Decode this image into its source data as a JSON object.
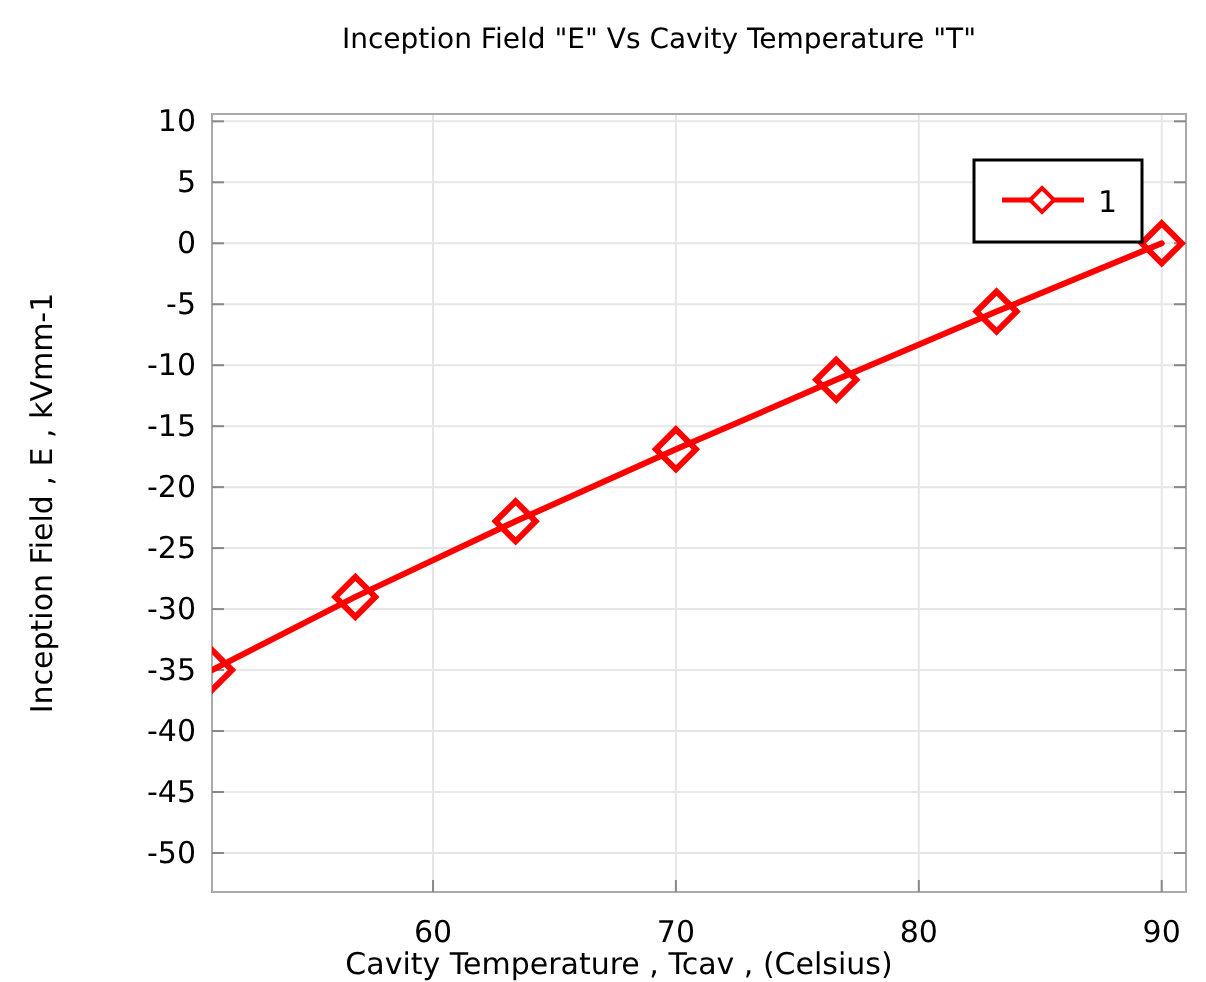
{
  "chart_data": {
    "type": "line",
    "title": "Inception Field  \"E\" Vs Cavity Temperature \"T\"",
    "xlabel": "Cavity Temperature , Tcav , (Celsius)",
    "ylabel": "Inception Field , E , kVmm-1",
    "x": [
      50.9,
      56.8,
      63.4,
      70,
      76.6,
      83.2,
      90
    ],
    "series": [
      {
        "name": "1",
        "color": "#ff0000",
        "values": [
          -35,
          -29,
          -22.8,
          -16.9,
          -11.2,
          -5.6,
          0
        ]
      }
    ],
    "xlim": [
      50.9,
      91
    ],
    "xticks": [
      60,
      70,
      80,
      90
    ],
    "ylim": [
      -53.2,
      10.6
    ],
    "yticks": [
      -50,
      -45,
      -40,
      -35,
      -30,
      -25,
      -20,
      -15,
      -10,
      -5,
      0,
      5,
      10
    ],
    "grid": true,
    "legend": "top right",
    "marker": "diamond",
    "line_style": "solid"
  }
}
